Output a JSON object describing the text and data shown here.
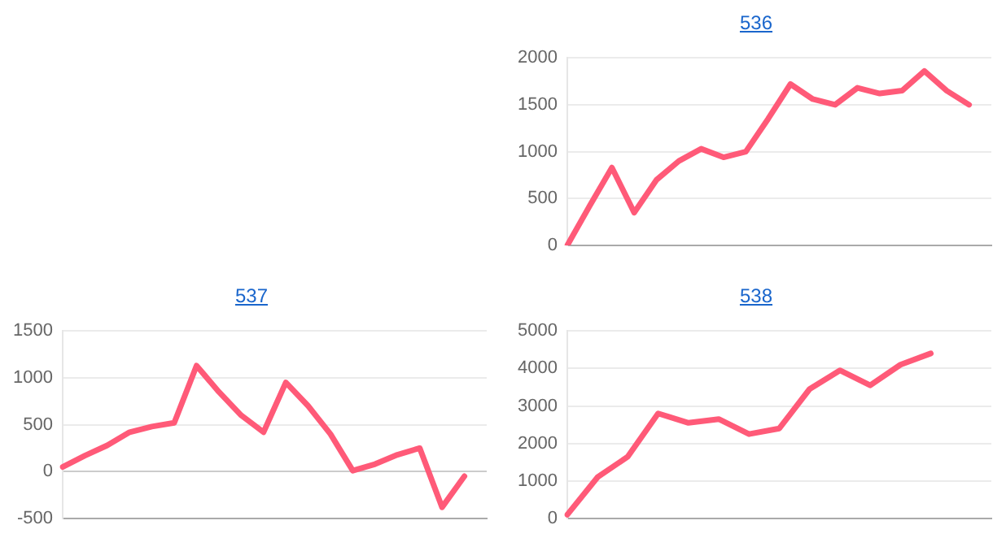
{
  "chart_data": [
    {
      "type": "line",
      "title": "536",
      "categories": [
        null,
        null,
        null,
        null,
        null,
        null,
        null,
        null,
        null,
        null,
        null,
        null,
        null,
        null,
        null,
        null,
        null,
        null,
        null,
        null
      ],
      "series": [
        {
          "color": "#ff5a78",
          "values": [
            0,
            420,
            830,
            350,
            700,
            900,
            1030,
            940,
            1000,
            1350,
            1720,
            1560,
            1500,
            1680,
            1620,
            1650,
            1860,
            1650,
            1500,
            null
          ]
        }
      ],
      "ylim": [
        0,
        2000
      ],
      "yticks": [
        0,
        500,
        1000,
        1500,
        2000
      ],
      "grid": "y",
      "tick_labels": "y",
      "marker": "none",
      "legend": false
    },
    {
      "type": "line",
      "title": "537",
      "categories": [
        null,
        null,
        null,
        null,
        null,
        null,
        null,
        null,
        null,
        null,
        null,
        null,
        null,
        null,
        null,
        null,
        null,
        null,
        null,
        null
      ],
      "series": [
        {
          "color": "#ff5a78",
          "values": [
            50,
            170,
            280,
            420,
            480,
            520,
            1130,
            850,
            600,
            420,
            950,
            700,
            400,
            10,
            80,
            180,
            250,
            -380,
            -50,
            null
          ]
        }
      ],
      "ylim": [
        -500,
        1500
      ],
      "yticks": [
        -500,
        0,
        500,
        1000,
        1500
      ],
      "grid": "y",
      "tick_labels": "y",
      "marker": "none",
      "legend": false
    },
    {
      "type": "line",
      "title": "538",
      "categories": [
        null,
        null,
        null,
        null,
        null,
        null,
        null,
        null,
        null,
        null,
        null,
        null,
        null,
        null,
        null
      ],
      "series": [
        {
          "color": "#ff5a78",
          "values": [
            100,
            1100,
            1650,
            2800,
            2550,
            2650,
            2250,
            2400,
            3450,
            3950,
            3550,
            4100,
            4400,
            null,
            null
          ]
        }
      ],
      "ylim": [
        0,
        5000
      ],
      "yticks": [
        0,
        1000,
        2000,
        3000,
        4000,
        5000
      ],
      "grid": "y",
      "tick_labels": "y",
      "marker": "none",
      "legend": false
    }
  ]
}
